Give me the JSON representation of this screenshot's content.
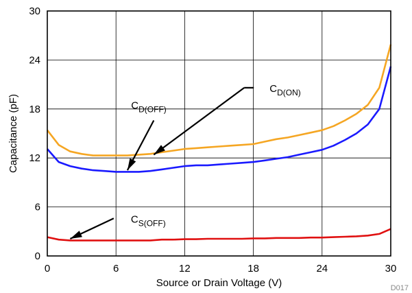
{
  "chart_data": {
    "type": "line",
    "xlabel": "Source or Drain Voltage (V)",
    "ylabel": "Capacitance (pF)",
    "xlim": [
      0,
      30
    ],
    "ylim": [
      0,
      30
    ],
    "xticks": [
      0,
      6,
      12,
      18,
      24,
      30
    ],
    "yticks": [
      0,
      6,
      12,
      18,
      24,
      30
    ],
    "grid": true,
    "legend": "none",
    "figure_id": "D017",
    "series": [
      {
        "color": "#f5a623",
        "x": [
          0,
          1,
          2,
          3,
          4,
          5,
          6,
          7,
          8,
          9,
          10,
          11,
          12,
          13,
          14,
          15,
          16,
          17,
          18,
          19,
          20,
          21,
          22,
          23,
          24,
          25,
          26,
          27,
          28,
          29,
          30
        ],
        "y": [
          15.4,
          13.6,
          12.8,
          12.5,
          12.3,
          12.3,
          12.3,
          12.3,
          12.4,
          12.5,
          12.7,
          12.9,
          13.1,
          13.2,
          13.3,
          13.4,
          13.5,
          13.6,
          13.7,
          14.0,
          14.3,
          14.5,
          14.8,
          15.1,
          15.4,
          15.9,
          16.6,
          17.4,
          18.5,
          20.6,
          25.9
        ]
      },
      {
        "color": "#1a1aff",
        "x": [
          0,
          1,
          2,
          3,
          4,
          5,
          6,
          7,
          8,
          9,
          10,
          11,
          12,
          13,
          14,
          15,
          16,
          17,
          18,
          19,
          20,
          21,
          22,
          23,
          24,
          25,
          26,
          27,
          28,
          29,
          30
        ],
        "y": [
          13.1,
          11.5,
          11.0,
          10.7,
          10.5,
          10.4,
          10.3,
          10.3,
          10.3,
          10.4,
          10.6,
          10.8,
          11.0,
          11.1,
          11.1,
          11.2,
          11.3,
          11.4,
          11.5,
          11.7,
          11.9,
          12.1,
          12.4,
          12.7,
          13.0,
          13.5,
          14.2,
          15.0,
          16.1,
          18.0,
          23.2
        ]
      },
      {
        "color": "#e01010",
        "x": [
          0,
          1,
          2,
          3,
          4,
          5,
          6,
          7,
          8,
          9,
          10,
          11,
          12,
          13,
          14,
          15,
          16,
          17,
          18,
          19,
          20,
          21,
          22,
          23,
          24,
          25,
          26,
          27,
          28,
          29,
          30
        ],
        "y": [
          2.3,
          2.0,
          1.9,
          1.9,
          1.9,
          1.9,
          1.9,
          1.9,
          1.9,
          1.9,
          2.0,
          2.0,
          2.05,
          2.05,
          2.1,
          2.1,
          2.1,
          2.1,
          2.15,
          2.15,
          2.2,
          2.2,
          2.2,
          2.25,
          2.25,
          2.3,
          2.35,
          2.4,
          2.5,
          2.7,
          3.3
        ]
      }
    ],
    "annotations": [
      {
        "main": "C",
        "sub": "D(OFF)",
        "arrow_from": [
          9.3,
          16.6
        ],
        "arrow_to": [
          7.0,
          10.5
        ]
      },
      {
        "main": "C",
        "sub": "D(ON)",
        "arrow_from": [
          17.2,
          20.6
        ],
        "arrow_to": [
          9.3,
          12.4
        ]
      },
      {
        "main": "C",
        "sub": "S(OFF)",
        "arrow_from": [
          5.8,
          4.6
        ],
        "arrow_to": [
          2.0,
          2.1
        ]
      }
    ]
  }
}
